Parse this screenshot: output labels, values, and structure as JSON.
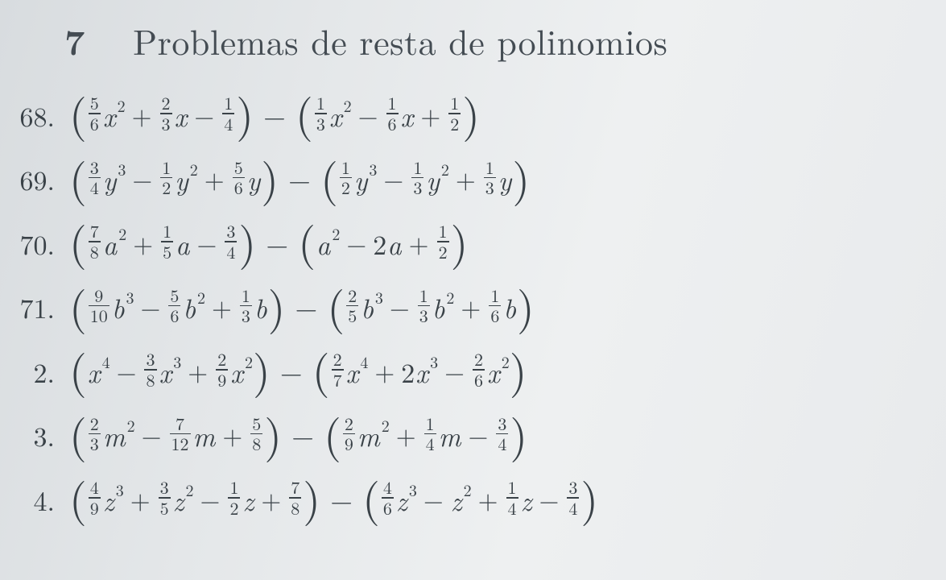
{
  "section": {
    "number": "7",
    "title": "Problemas de resta de polinomios",
    "title_fontsize": 44,
    "title_color": "#444c53"
  },
  "problems": [
    {
      "label": "68.",
      "left": [
        {
          "coef_num": "5",
          "coef_den": "6",
          "var": "x",
          "pow": "2",
          "sign": ""
        },
        {
          "coef_num": "2",
          "coef_den": "3",
          "var": "x",
          "pow": "",
          "sign": "+"
        },
        {
          "coef_num": "1",
          "coef_den": "4",
          "var": "",
          "pow": "",
          "sign": "−"
        }
      ],
      "right": [
        {
          "coef_num": "1",
          "coef_den": "3",
          "var": "x",
          "pow": "2",
          "sign": ""
        },
        {
          "coef_num": "1",
          "coef_den": "6",
          "var": "x",
          "pow": "",
          "sign": "−"
        },
        {
          "coef_num": "1",
          "coef_den": "2",
          "var": "",
          "pow": "",
          "sign": "+"
        }
      ]
    },
    {
      "label": "69.",
      "left": [
        {
          "coef_num": "3",
          "coef_den": "4",
          "var": "y",
          "pow": "3",
          "sign": ""
        },
        {
          "coef_num": "1",
          "coef_den": "2",
          "var": "y",
          "pow": "2",
          "sign": "−"
        },
        {
          "coef_num": "5",
          "coef_den": "6",
          "var": "y",
          "pow": "",
          "sign": "+"
        }
      ],
      "right": [
        {
          "coef_num": "1",
          "coef_den": "2",
          "var": "y",
          "pow": "3",
          "sign": ""
        },
        {
          "coef_num": "1",
          "coef_den": "3",
          "var": "y",
          "pow": "2",
          "sign": "−"
        },
        {
          "coef_num": "1",
          "coef_den": "3",
          "var": "y",
          "pow": "",
          "sign": "+"
        }
      ]
    },
    {
      "label": "70.",
      "left": [
        {
          "coef_num": "7",
          "coef_den": "8",
          "var": "a",
          "pow": "2",
          "sign": ""
        },
        {
          "coef_num": "1",
          "coef_den": "5",
          "var": "a",
          "pow": "",
          "sign": "+"
        },
        {
          "coef_num": "3",
          "coef_den": "4",
          "var": "",
          "pow": "",
          "sign": "−"
        }
      ],
      "right": [
        {
          "whole": "",
          "var": "a",
          "pow": "2",
          "sign": ""
        },
        {
          "whole": "2",
          "var": "a",
          "pow": "",
          "sign": "−"
        },
        {
          "coef_num": "1",
          "coef_den": "2",
          "var": "",
          "pow": "",
          "sign": "+"
        }
      ]
    },
    {
      "label": "71.",
      "left": [
        {
          "coef_num": "9",
          "coef_den": "10",
          "var": "b",
          "pow": "3",
          "sign": ""
        },
        {
          "coef_num": "5",
          "coef_den": "6",
          "var": "b",
          "pow": "2",
          "sign": "−"
        },
        {
          "coef_num": "1",
          "coef_den": "3",
          "var": "b",
          "pow": "",
          "sign": "+"
        }
      ],
      "right": [
        {
          "coef_num": "2",
          "coef_den": "5",
          "var": "b",
          "pow": "3",
          "sign": ""
        },
        {
          "coef_num": "1",
          "coef_den": "3",
          "var": "b",
          "pow": "2",
          "sign": "−"
        },
        {
          "coef_num": "1",
          "coef_den": "6",
          "var": "b",
          "pow": "",
          "sign": "+"
        }
      ]
    },
    {
      "label": "2.",
      "left": [
        {
          "whole": "",
          "var": "x",
          "pow": "4",
          "sign": ""
        },
        {
          "coef_num": "3",
          "coef_den": "8",
          "var": "x",
          "pow": "3",
          "sign": "−"
        },
        {
          "coef_num": "2",
          "coef_den": "9",
          "var": "x",
          "pow": "2",
          "sign": "+"
        }
      ],
      "right": [
        {
          "coef_num": "2",
          "coef_den": "7",
          "var": "x",
          "pow": "4",
          "sign": ""
        },
        {
          "whole": "2",
          "var": "x",
          "pow": "3",
          "sign": "+"
        },
        {
          "coef_num": "2",
          "coef_den": "6",
          "var": "x",
          "pow": "2",
          "sign": "−"
        }
      ]
    },
    {
      "label": "3.",
      "left": [
        {
          "coef_num": "2",
          "coef_den": "3",
          "var": "m",
          "pow": "2",
          "sign": ""
        },
        {
          "coef_num": "7",
          "coef_den": "12",
          "var": "m",
          "pow": "",
          "sign": "−"
        },
        {
          "coef_num": "5",
          "coef_den": "8",
          "var": "",
          "pow": "",
          "sign": "+"
        }
      ],
      "right": [
        {
          "coef_num": "2",
          "coef_den": "9",
          "var": "m",
          "pow": "2",
          "sign": ""
        },
        {
          "coef_num": "1",
          "coef_den": "4",
          "var": "m",
          "pow": "",
          "sign": "+"
        },
        {
          "coef_num": "3",
          "coef_den": "4",
          "var": "",
          "pow": "",
          "sign": "−"
        }
      ]
    },
    {
      "label": "4.",
      "left": [
        {
          "coef_num": "4",
          "coef_den": "9",
          "var": "z",
          "pow": "3",
          "sign": ""
        },
        {
          "coef_num": "3",
          "coef_den": "5",
          "var": "z",
          "pow": "2",
          "sign": "+"
        },
        {
          "coef_num": "1",
          "coef_den": "2",
          "var": "z",
          "pow": "",
          "sign": "−"
        },
        {
          "coef_num": "7",
          "coef_den": "8",
          "var": "",
          "pow": "",
          "sign": "+"
        }
      ],
      "right": [
        {
          "coef_num": "4",
          "coef_den": "6",
          "var": "z",
          "pow": "3",
          "sign": ""
        },
        {
          "whole": "",
          "var": "z",
          "pow": "2",
          "sign": "−"
        },
        {
          "coef_num": "1",
          "coef_den": "4",
          "var": "z",
          "pow": "",
          "sign": "+"
        },
        {
          "coef_num": "3",
          "coef_den": "4",
          "var": "",
          "pow": "",
          "sign": "−"
        }
      ]
    }
  ],
  "style": {
    "body_fontsize": 34,
    "frac_fontsize": 22,
    "paren_fontsize": 56,
    "text_color": "#3a4248",
    "background_gradient": [
      "#d8dcdf",
      "#e4e7e9",
      "#eef0f1",
      "#e8eaec"
    ]
  }
}
